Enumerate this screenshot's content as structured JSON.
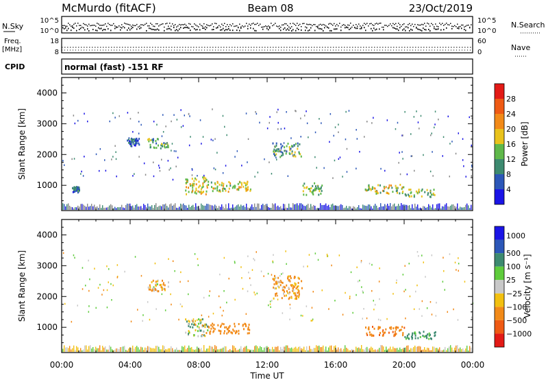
{
  "header": {
    "station": "McMurdo (fitACF)",
    "beam": "Beam 08",
    "date": "23/Oct/2019"
  },
  "noise_panel": {
    "left_label": "N.Sky",
    "right_label": "N.Search",
    "left_ticks": [
      "10^5",
      "10^0"
    ],
    "right_ticks": [
      "10^5",
      "10^0"
    ]
  },
  "freq_panel": {
    "left_label_1": "Freq.",
    "left_label_2": "[MHz]",
    "right_label": "Nave",
    "left_ticks": [
      "18",
      "8"
    ],
    "right_ticks": [
      "60",
      "0"
    ]
  },
  "cpid_panel": {
    "label": "CPID",
    "text": "normal (fast) -151 RF"
  },
  "x_axis": {
    "title": "Time UT",
    "ticks": [
      "00:00",
      "04:00",
      "08:00",
      "12:00",
      "16:00",
      "20:00",
      "00:00"
    ]
  },
  "power_panel": {
    "ylabel": "Slant Range [km]",
    "yticks": [
      "1000",
      "2000",
      "3000",
      "4000"
    ],
    "colorbar_label": "Power [dB]",
    "colorbar_ticks": [
      "4",
      "8",
      "12",
      "16",
      "20",
      "24",
      "28"
    ],
    "colorbar_colors": [
      "#1a14e6",
      "#2c57b8",
      "#3d8a70",
      "#5fb84a",
      "#e9c21c",
      "#f28a18",
      "#ef5a14",
      "#e31a16"
    ]
  },
  "velocity_panel": {
    "ylabel": "Slant Range [km]",
    "yticks": [
      "1000",
      "2000",
      "3000",
      "4000"
    ],
    "colorbar_label": "Velocity [m s⁻¹]",
    "colorbar_ticks": [
      "1000",
      "500",
      "100",
      "25",
      "−25",
      "−100",
      "−500",
      "−1000"
    ],
    "colorbar_colors": [
      "#1a14e6",
      "#2c57b8",
      "#3d8a70",
      "#5fcc3c",
      "#c8c8c8",
      "#f2c010",
      "#f28a18",
      "#ef5a14",
      "#e31a16"
    ]
  },
  "chart_data": {
    "type": "heatmap",
    "x_range": [
      "00:00",
      "24:00"
    ],
    "y_range_km": [
      180,
      4500
    ],
    "power_regions": [
      {
        "t_start": 0.6,
        "t_end": 1.0,
        "r_min": 800,
        "r_max": 1000,
        "power_db": 8
      },
      {
        "t_start": 3.8,
        "t_end": 4.5,
        "r_min": 2300,
        "r_max": 2550,
        "power_db": 6
      },
      {
        "t_start": 5.0,
        "t_end": 6.2,
        "r_min": 2200,
        "r_max": 2550,
        "power_db": 12
      },
      {
        "t_start": 7.2,
        "t_end": 8.5,
        "r_min": 720,
        "r_max": 1300,
        "power_db": 18
      },
      {
        "t_start": 8.5,
        "t_end": 11.0,
        "r_min": 820,
        "r_max": 1150,
        "power_db": 16
      },
      {
        "t_start": 12.3,
        "t_end": 14.0,
        "r_min": 1950,
        "r_max": 2400,
        "power_db": 12
      },
      {
        "t_start": 14.0,
        "t_end": 15.2,
        "r_min": 700,
        "r_max": 1100,
        "power_db": 14
      },
      {
        "t_start": 17.7,
        "t_end": 20.0,
        "r_min": 750,
        "r_max": 1050,
        "power_db": 16
      },
      {
        "t_start": 20.0,
        "t_end": 21.8,
        "r_min": 650,
        "r_max": 900,
        "power_db": 14
      }
    ],
    "velocity_regions": [
      {
        "t_start": 5.0,
        "t_end": 6.2,
        "r_min": 2200,
        "r_max": 2550,
        "velocity": -100
      },
      {
        "t_start": 7.2,
        "t_end": 8.5,
        "r_min": 720,
        "r_max": 1300,
        "velocity": 50
      },
      {
        "t_start": 8.5,
        "t_end": 11.0,
        "r_min": 820,
        "r_max": 1150,
        "velocity": -300
      },
      {
        "t_start": 12.3,
        "t_end": 14.0,
        "r_min": 1950,
        "r_max": 2700,
        "velocity": -150
      },
      {
        "t_start": 17.7,
        "t_end": 20.0,
        "r_min": 750,
        "r_max": 1050,
        "velocity": -400
      },
      {
        "t_start": 20.0,
        "t_end": 21.8,
        "r_min": 650,
        "r_max": 900,
        "velocity": 200
      }
    ]
  }
}
